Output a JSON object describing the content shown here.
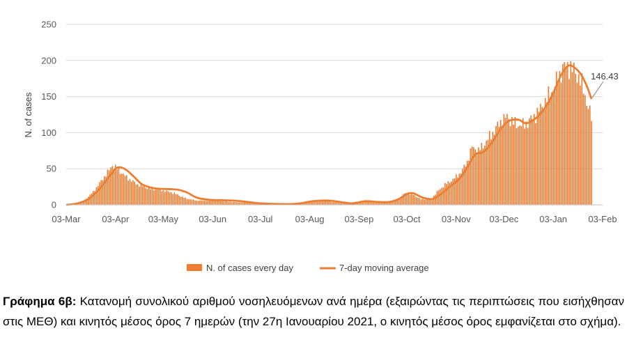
{
  "chart_data": {
    "type": "bar",
    "ylabel": "N. of cases",
    "ylim": [
      0,
      250
    ],
    "yticks": [
      0,
      50,
      100,
      150,
      200,
      250
    ],
    "xlim": [
      "2020-03-03",
      "2021-02-03"
    ],
    "x_tick_labels": [
      "03-Mar",
      "03-Apr",
      "03-May",
      "03-Jun",
      "03-Jul",
      "03-Aug",
      "03-Sep",
      "03-Oct",
      "03-Nov",
      "03-Dec",
      "03-Jan",
      "03-Feb"
    ],
    "grid": "horizontal",
    "legend_position": "bottom",
    "series": [
      {
        "name": "N. of cases every day",
        "kind": "bar",
        "color": "#ED7D31",
        "x_start": "2020-03-03",
        "x_end": "2021-01-27",
        "keypoints": [
          [
            "2020-03-03",
            0
          ],
          [
            "2020-03-08",
            1
          ],
          [
            "2020-03-14",
            5
          ],
          [
            "2020-03-20",
            18
          ],
          [
            "2020-03-25",
            33
          ],
          [
            "2020-03-30",
            48
          ],
          [
            "2020-04-01",
            55
          ],
          [
            "2020-04-04",
            50
          ],
          [
            "2020-04-10",
            38
          ],
          [
            "2020-04-17",
            28
          ],
          [
            "2020-04-25",
            22
          ],
          [
            "2020-05-03",
            20
          ],
          [
            "2020-05-10",
            16
          ],
          [
            "2020-05-17",
            9
          ],
          [
            "2020-05-24",
            6
          ],
          [
            "2020-06-03",
            6
          ],
          [
            "2020-06-15",
            4
          ],
          [
            "2020-06-25",
            3
          ],
          [
            "2020-07-03",
            2
          ],
          [
            "2020-07-15",
            1
          ],
          [
            "2020-07-25",
            1
          ],
          [
            "2020-08-03",
            5
          ],
          [
            "2020-08-10",
            6
          ],
          [
            "2020-08-18",
            4
          ],
          [
            "2020-08-26",
            2
          ],
          [
            "2020-09-03",
            5
          ],
          [
            "2020-09-10",
            5
          ],
          [
            "2020-09-18",
            3
          ],
          [
            "2020-09-24",
            5
          ],
          [
            "2020-09-28",
            9
          ],
          [
            "2020-10-02",
            16
          ],
          [
            "2020-10-06",
            15
          ],
          [
            "2020-10-12",
            8
          ],
          [
            "2020-10-18",
            7
          ],
          [
            "2020-10-22",
            18
          ],
          [
            "2020-10-27",
            28
          ],
          [
            "2020-11-01",
            35
          ],
          [
            "2020-11-06",
            45
          ],
          [
            "2020-11-10",
            60
          ],
          [
            "2020-11-13",
            80
          ],
          [
            "2020-11-17",
            75
          ],
          [
            "2020-11-21",
            85
          ],
          [
            "2020-11-26",
            100
          ],
          [
            "2020-12-01",
            115
          ],
          [
            "2020-12-05",
            122
          ],
          [
            "2020-12-10",
            112
          ],
          [
            "2020-12-15",
            110
          ],
          [
            "2020-12-20",
            118
          ],
          [
            "2020-12-25",
            130
          ],
          [
            "2020-12-31",
            150
          ],
          [
            "2021-01-05",
            170
          ],
          [
            "2021-01-09",
            190
          ],
          [
            "2021-01-13",
            193
          ],
          [
            "2021-01-16",
            185
          ],
          [
            "2021-01-19",
            178
          ],
          [
            "2021-01-22",
            160
          ],
          [
            "2021-01-25",
            135
          ],
          [
            "2021-01-27",
            120
          ]
        ]
      },
      {
        "name": "7-day moving average",
        "kind": "line",
        "color": "#ED7D31",
        "points": [
          [
            "2020-03-03",
            0
          ],
          [
            "2020-03-10",
            2
          ],
          [
            "2020-03-17",
            8
          ],
          [
            "2020-03-24",
            22
          ],
          [
            "2020-03-31",
            42
          ],
          [
            "2020-04-03",
            50
          ],
          [
            "2020-04-06",
            52
          ],
          [
            "2020-04-10",
            48
          ],
          [
            "2020-04-15",
            38
          ],
          [
            "2020-04-20",
            28
          ],
          [
            "2020-04-27",
            23
          ],
          [
            "2020-05-03",
            22
          ],
          [
            "2020-05-12",
            21
          ],
          [
            "2020-05-18",
            17
          ],
          [
            "2020-05-24",
            10
          ],
          [
            "2020-06-01",
            7
          ],
          [
            "2020-06-15",
            6
          ],
          [
            "2020-06-25",
            4
          ],
          [
            "2020-07-03",
            2
          ],
          [
            "2020-07-20",
            1
          ],
          [
            "2020-07-28",
            2
          ],
          [
            "2020-08-05",
            5
          ],
          [
            "2020-08-14",
            6
          ],
          [
            "2020-08-22",
            4
          ],
          [
            "2020-08-30",
            2
          ],
          [
            "2020-09-07",
            5
          ],
          [
            "2020-09-15",
            4
          ],
          [
            "2020-09-22",
            4
          ],
          [
            "2020-09-28",
            8
          ],
          [
            "2020-10-03",
            15
          ],
          [
            "2020-10-07",
            16
          ],
          [
            "2020-10-13",
            10
          ],
          [
            "2020-10-19",
            8
          ],
          [
            "2020-10-24",
            14
          ],
          [
            "2020-10-30",
            25
          ],
          [
            "2020-11-05",
            36
          ],
          [
            "2020-11-10",
            52
          ],
          [
            "2020-11-15",
            70
          ],
          [
            "2020-11-20",
            73
          ],
          [
            "2020-11-25",
            85
          ],
          [
            "2020-12-01",
            105
          ],
          [
            "2020-12-06",
            116
          ],
          [
            "2020-12-12",
            118
          ],
          [
            "2020-12-17",
            113
          ],
          [
            "2020-12-23",
            120
          ],
          [
            "2020-12-29",
            135
          ],
          [
            "2021-01-03",
            155
          ],
          [
            "2021-01-08",
            180
          ],
          [
            "2021-01-12",
            192
          ],
          [
            "2021-01-15",
            192
          ],
          [
            "2021-01-20",
            182
          ],
          [
            "2021-01-24",
            165
          ],
          [
            "2021-01-27",
            146.43
          ]
        ]
      }
    ],
    "annotations": [
      {
        "text": "146.43",
        "x": "2021-01-27",
        "y": 146.43
      }
    ]
  },
  "caption": {
    "label": "Γράφημα 6β:",
    "text": "Κατανομή συνολικού αριθμού νοσηλευόμενων ανά ημέρα (εξαιρώντας τις περιπτώσεις που εισήχθησαν στις ΜΕΘ) και κινητός μέσος όρος 7 ημερών (την 27η Ιανουαρίου 2021, ο κινητός μέσος όρος εμφανίζεται στο σχήμα)."
  }
}
